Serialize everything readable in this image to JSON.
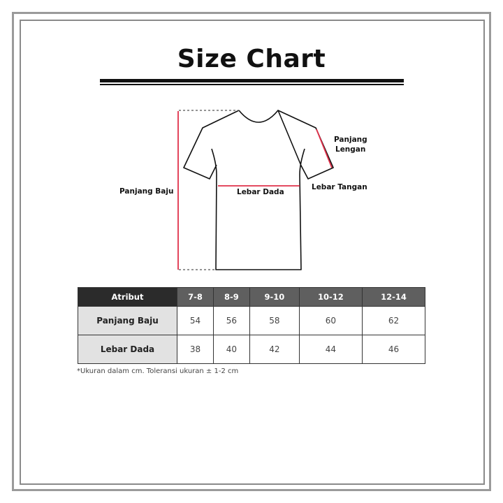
{
  "title": "Size Chart",
  "diagram": {
    "labels": {
      "length": "Panjang Baju",
      "chest": "Lebar Dada",
      "sleeve_width": "Lebar Tangan",
      "sleeve_length_line1": "Panjang",
      "sleeve_length_line2": "Lengan"
    },
    "measure_color": "#e0304a"
  },
  "table": {
    "headers": [
      "Atribut",
      "7-8",
      "8-9",
      "9-10",
      "10-12",
      "12-14"
    ],
    "rows": [
      {
        "label": "Panjang Baju",
        "values": [
          "54",
          "56",
          "58",
          "60",
          "62"
        ]
      },
      {
        "label": "Lebar Dada",
        "values": [
          "38",
          "40",
          "42",
          "44",
          "46"
        ]
      }
    ]
  },
  "note": "*Ukuran dalam cm. Toleransi ukuran ± 1-2 cm"
}
